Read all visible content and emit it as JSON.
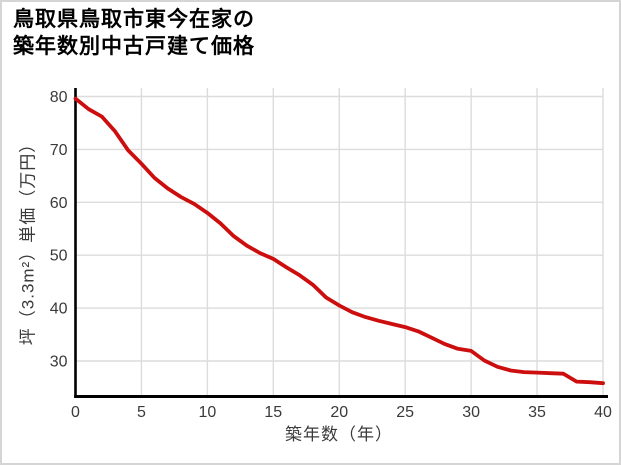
{
  "page": {
    "background": "#ffffff",
    "frame_border_color": "#d5d5d5"
  },
  "chart_data": {
    "type": "line",
    "title": "鳥取県鳥取市東今在家の築年数別中古戸建て価格",
    "title_lines": [
      "鳥取県鳥取市東今在家の",
      "築年数別中古戸建て価格"
    ],
    "xlabel": "築年数（年）",
    "ylabel": "坪（3.3m²）単価（万円）",
    "x_ticks": [
      0,
      5,
      10,
      15,
      20,
      25,
      30,
      35,
      40
    ],
    "y_ticks": [
      30,
      40,
      50,
      60,
      70,
      80
    ],
    "xlim": [
      0,
      40
    ],
    "ylim": [
      23,
      81
    ],
    "grid": true,
    "legend_position": "none",
    "line_color": "#cc0e0e",
    "grid_color": "#dcdcdc",
    "axis_color": "#000000",
    "tick_label_color": "#3a3a3a",
    "series": [
      {
        "x_start": 0,
        "x_step": 1,
        "values": [
          79.6,
          77.6,
          76.2,
          73.4,
          69.8,
          67.3,
          64.6,
          62.6,
          61.0,
          59.7,
          58.0,
          56.0,
          53.6,
          51.8,
          50.4,
          49.3,
          47.7,
          46.2,
          44.4,
          42.0,
          40.5,
          39.2,
          38.3,
          37.6,
          37.0,
          36.4,
          35.6,
          34.4,
          33.2,
          32.3,
          31.9,
          30.1,
          28.9,
          28.2,
          27.9,
          27.8,
          27.7,
          27.6,
          26.1,
          26.0,
          25.8
        ]
      }
    ]
  }
}
